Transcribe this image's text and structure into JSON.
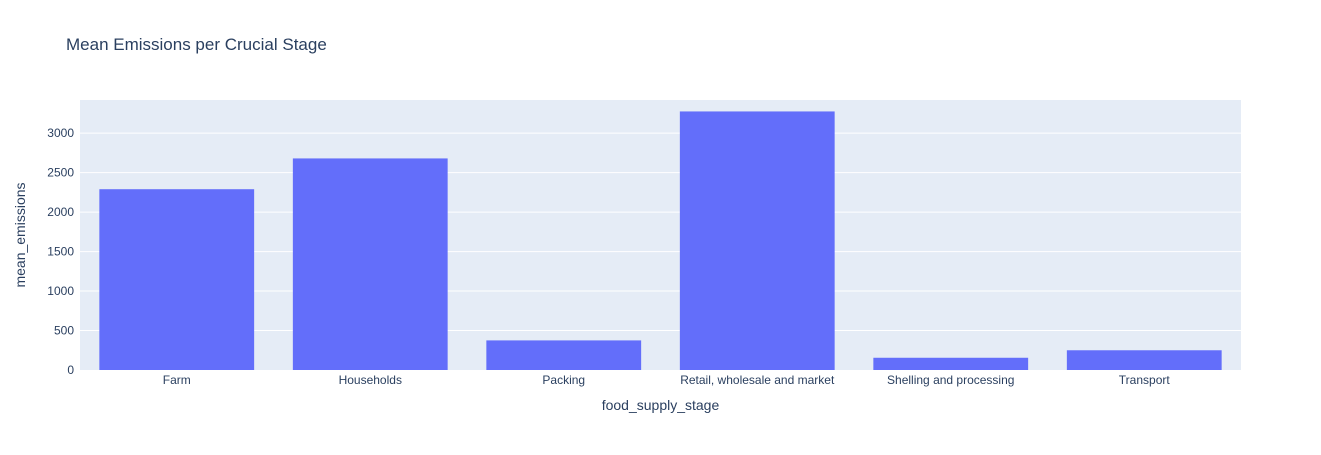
{
  "chart_data": {
    "type": "bar",
    "title": "Mean Emissions per Crucial Stage",
    "xlabel": "food_supply_stage",
    "ylabel": "mean_emissions",
    "categories": [
      "Farm",
      "Households",
      "Packing",
      "Retail, wholesale and market",
      "Shelling and processing",
      "Transport"
    ],
    "values": [
      2290,
      2680,
      375,
      3275,
      155,
      250
    ],
    "ylim": [
      0,
      3420
    ],
    "yticks": [
      0,
      500,
      1000,
      1500,
      2000,
      2500,
      3000
    ],
    "grid": true,
    "colors": {
      "bar": "#636efa",
      "plot_bg": "#e5ecf6",
      "grid": "#ffffff",
      "text": "#2a3f5f"
    }
  }
}
